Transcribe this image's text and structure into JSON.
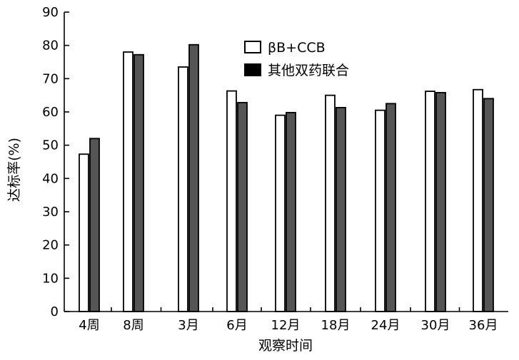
{
  "chart_data": {
    "type": "bar",
    "title": "",
    "xlabel": "观察时间",
    "ylabel": "达标率(%)",
    "ylim": [
      0,
      90
    ],
    "yticks": [
      0,
      10,
      20,
      30,
      40,
      50,
      60,
      70,
      80,
      90
    ],
    "grid": false,
    "legend_position": "top-right",
    "categories": [
      "4周",
      "8周",
      "3月",
      "6月",
      "12月",
      "18月",
      "24月",
      "30月",
      "36月"
    ],
    "series": [
      {
        "name": "βB+CCB",
        "color": "#ffffff",
        "values": [
          47.3,
          78.0,
          73.5,
          66.3,
          59.0,
          65.0,
          60.5,
          66.2,
          66.7
        ]
      },
      {
        "name": "其他双药联合",
        "color": "#555555",
        "values": [
          52.0,
          77.2,
          80.2,
          62.8,
          59.8,
          61.3,
          62.5,
          65.8,
          64.0
        ]
      }
    ]
  }
}
